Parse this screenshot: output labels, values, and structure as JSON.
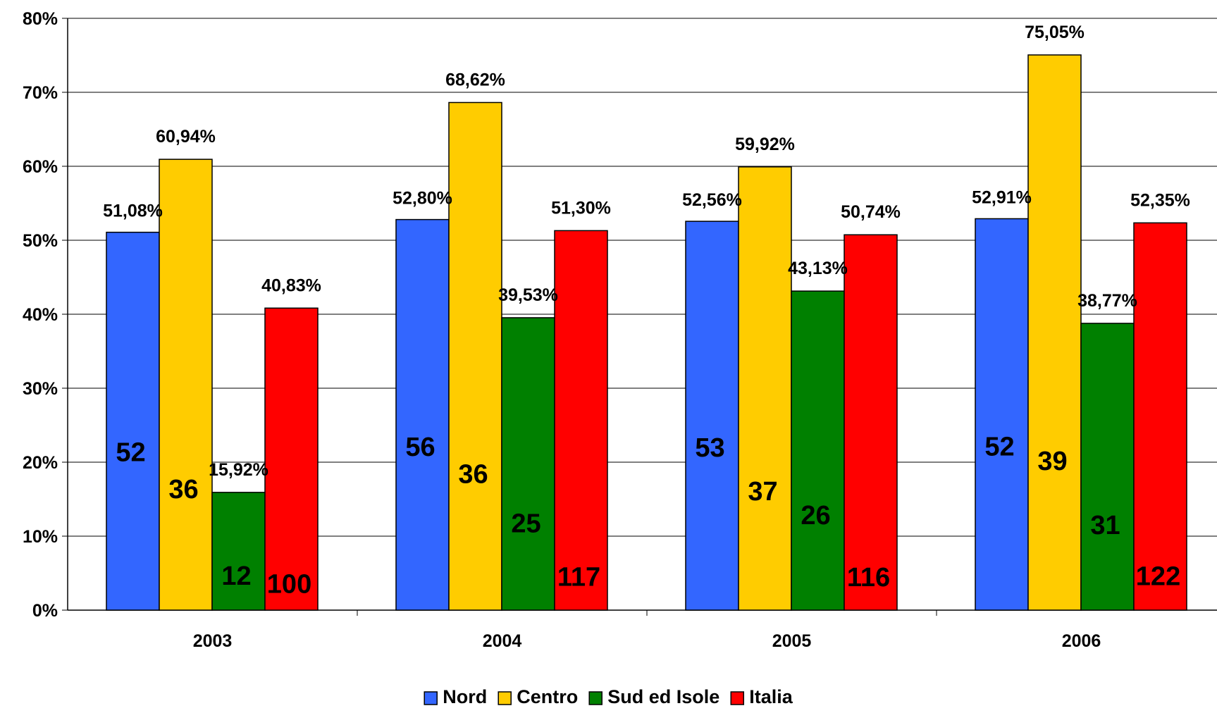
{
  "chart_data": {
    "type": "bar",
    "categories": [
      "2003",
      "2004",
      "2005",
      "2006"
    ],
    "y_ticks": [
      "0%",
      "10%",
      "20%",
      "30%",
      "40%",
      "50%",
      "60%",
      "70%",
      "80%"
    ],
    "ylim": [
      0,
      80
    ],
    "grid": true,
    "legend_position": "bottom",
    "series": [
      {
        "name": "Nord",
        "color": "#3366FF",
        "values": [
          51.08,
          52.8,
          52.56,
          52.91
        ],
        "value_labels": [
          "51,08%",
          "52,80%",
          "52,56%",
          "52,91%"
        ],
        "counts": [
          "52",
          "56",
          "53",
          "52"
        ]
      },
      {
        "name": "Centro",
        "color": "#FFCC00",
        "values": [
          60.94,
          68.62,
          59.92,
          75.05
        ],
        "value_labels": [
          "60,94%",
          "68,62%",
          "59,92%",
          "75,05%"
        ],
        "counts": [
          "36",
          "36",
          "37",
          "39"
        ]
      },
      {
        "name": "Sud ed Isole",
        "color": "#008000",
        "values": [
          15.92,
          39.53,
          43.13,
          38.77
        ],
        "value_labels": [
          "15,92%",
          "39,53%",
          "43,13%",
          "38,77%"
        ],
        "counts": [
          "12",
          "25",
          "26",
          "31"
        ]
      },
      {
        "name": "Italia",
        "color": "#FF0000",
        "values": [
          40.83,
          51.3,
          50.74,
          52.35
        ],
        "value_labels": [
          "40,83%",
          "51,30%",
          "50,74%",
          "52,35%"
        ],
        "counts": [
          "100",
          "117",
          "116",
          "122"
        ]
      }
    ]
  }
}
